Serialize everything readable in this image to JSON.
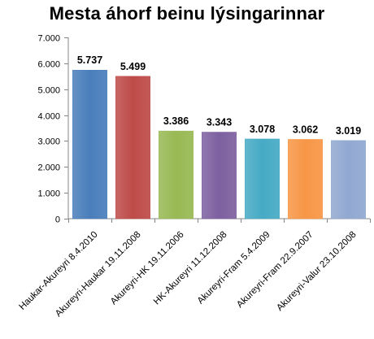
{
  "chart_data": {
    "type": "bar",
    "title": "Mesta áhorf beinu lýsingarinnar",
    "categories": [
      "Haukar-Akureyri 8.4.2010",
      "Akureyri-Haukar 19.11.2008",
      "Akureyri-HK 19.11.2006",
      "HK-Akureyri 11.12.2008",
      "Akureyri-Fram 5.4.2009",
      "Akureyri-Fram 22.9.2007",
      "Akureyri-Valur 23.10.2008"
    ],
    "values": [
      5737,
      5499,
      3386,
      3343,
      3078,
      3062,
      3019
    ],
    "data_labels": [
      "5.737",
      "5.499",
      "3.386",
      "3.343",
      "3.078",
      "3.062",
      "3.019"
    ],
    "colors": [
      "#4a7ebb",
      "#be4b48",
      "#98b954",
      "#7d60a0",
      "#46aac5",
      "#f79646",
      "#91a8d1"
    ],
    "ylim": [
      0,
      7000
    ],
    "yticks": [
      0,
      1000,
      2000,
      3000,
      4000,
      5000,
      6000,
      7000
    ],
    "ytick_labels": [
      "0",
      "1.000",
      "2.000",
      "3.000",
      "4.000",
      "5.000",
      "6.000",
      "7.000"
    ],
    "xlabel": "",
    "ylabel": "",
    "grid": false,
    "legend": "none"
  }
}
